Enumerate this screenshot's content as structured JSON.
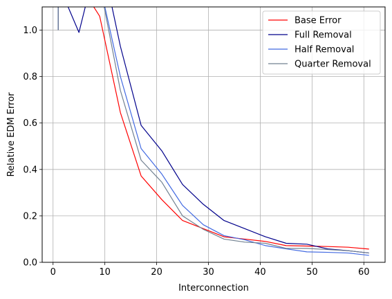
{
  "chart_data": {
    "type": "line",
    "title": "",
    "xlabel": "Interconnection",
    "ylabel": "Relative EDM Error",
    "xlim": [
      -2.1,
      64.1
    ],
    "ylim": [
      0,
      1.1
    ],
    "xticks": [
      0,
      10,
      20,
      30,
      40,
      50,
      60
    ],
    "yticks": [
      0.0,
      0.2,
      0.4,
      0.6,
      0.8,
      1.0
    ],
    "xtick_labels": [
      "0",
      "10",
      "20",
      "30",
      "40",
      "50",
      "60"
    ],
    "ytick_labels": [
      "0.0",
      "0.2",
      "0.4",
      "0.6",
      "0.8",
      "1.0"
    ],
    "grid": true,
    "legend_position": "top-right",
    "series": [
      {
        "name": "Base Error",
        "color": "#ff0000",
        "x": [
          1,
          1,
          5,
          9,
          13,
          17,
          21,
          25,
          29,
          33,
          37,
          41,
          45,
          49,
          53,
          57,
          61
        ],
        "y": [
          1.0,
          1.2,
          1.2,
          1.06,
          0.645,
          0.372,
          0.27,
          0.18,
          0.145,
          0.11,
          0.1,
          0.09,
          0.072,
          0.07,
          0.068,
          0.065,
          0.057
        ]
      },
      {
        "name": "Full Removal",
        "color": "#00008b",
        "x": [
          1,
          1,
          5,
          9,
          13,
          17,
          21,
          25,
          29,
          33,
          37,
          41,
          45,
          49,
          53,
          57,
          61
        ],
        "y": [
          1.0,
          1.2,
          0.99,
          1.35,
          0.93,
          0.59,
          0.48,
          0.335,
          0.25,
          0.18,
          0.145,
          0.11,
          0.082,
          0.078,
          0.058,
          0.05,
          0.04
        ]
      },
      {
        "name": "Half Removal",
        "color": "#4169e1",
        "x": [
          1,
          1,
          5,
          9,
          13,
          17,
          21,
          25,
          29,
          33,
          37,
          41,
          45,
          49,
          53,
          57,
          61
        ],
        "y": [
          1.0,
          1.2,
          1.2,
          1.2,
          0.8,
          0.49,
          0.38,
          0.245,
          0.162,
          0.115,
          0.097,
          0.072,
          0.058,
          0.045,
          0.043,
          0.04,
          0.03
        ]
      },
      {
        "name": "Quarter Removal",
        "color": "#708090",
        "x": [
          1,
          1,
          5,
          9,
          13,
          17,
          21,
          25,
          29,
          33,
          37,
          41,
          45,
          49,
          53,
          57,
          61
        ],
        "y": [
          1.0,
          1.2,
          1.2,
          1.2,
          0.74,
          0.44,
          0.345,
          0.2,
          0.142,
          0.1,
          0.087,
          0.082,
          0.06,
          0.06,
          0.055,
          0.05,
          0.04
        ]
      }
    ]
  }
}
